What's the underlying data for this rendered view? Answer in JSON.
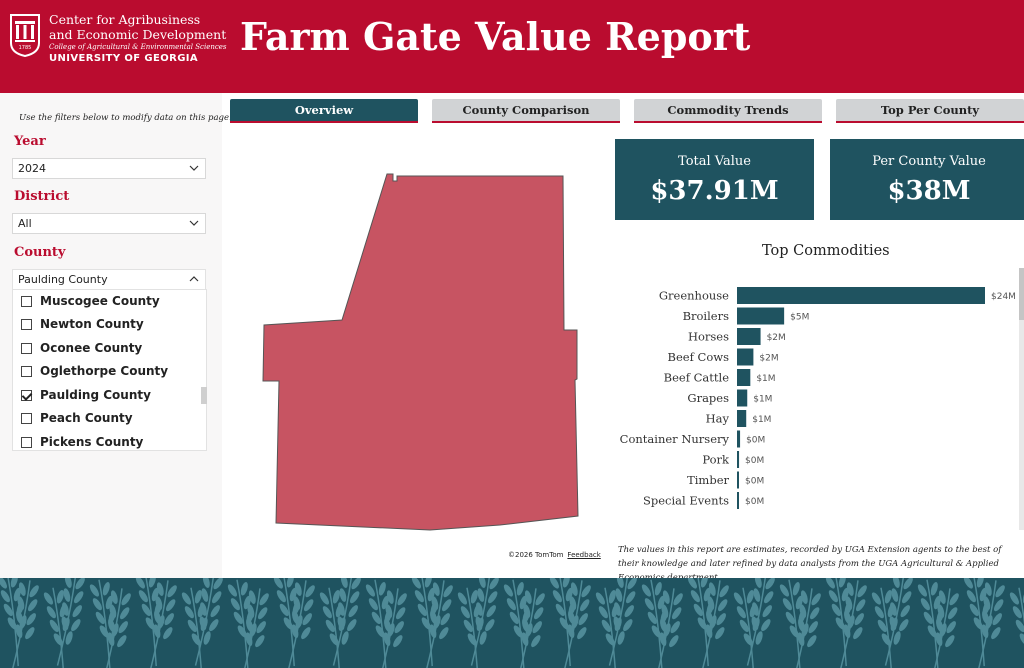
{
  "header": {
    "org_line1": "Center for Agribusiness",
    "org_line2": "and Economic Development",
    "org_line3": "College of Agricultural & Environmental Sciences",
    "org_line4": "UNIVERSITY OF GEORGIA",
    "logo_icon": "uga-arch-shield-logo",
    "logo_year": "1785",
    "title": "Farm Gate Value Report"
  },
  "filters": {
    "hint": "Use the filters below to modify data on this page.",
    "year_label": "Year",
    "year_value": "2024",
    "district_label": "District",
    "district_value": "All",
    "county_label": "County",
    "county_value": "Paulding County",
    "county_options": [
      {
        "name": "Muscogee County",
        "checked": false
      },
      {
        "name": "Newton County",
        "checked": false
      },
      {
        "name": "Oconee County",
        "checked": false
      },
      {
        "name": "Oglethorpe County",
        "checked": false
      },
      {
        "name": "Paulding County",
        "checked": true
      },
      {
        "name": "Peach County",
        "checked": false
      },
      {
        "name": "Pickens County",
        "checked": false
      }
    ]
  },
  "tabs": [
    {
      "label": "Overview",
      "active": true
    },
    {
      "label": "County Comparison",
      "active": false
    },
    {
      "label": "Commodity Trends",
      "active": false
    },
    {
      "label": "Top Per County",
      "active": false
    }
  ],
  "map": {
    "attribution": "©2026 TomTom",
    "feedback": "Feedback",
    "fill_color": "#c75462"
  },
  "cards": {
    "total_label": "Total Value",
    "total_value": "$37.91M",
    "per_county_label": "Per County Value",
    "per_county_value": "$38M"
  },
  "chart_data": {
    "type": "bar",
    "orientation": "horizontal",
    "title": "Top Commodities",
    "categories": [
      "Greenhouse",
      "Broilers",
      "Horses",
      "Beef Cows",
      "Beef Cattle",
      "Grapes",
      "Hay",
      "Container Nursery",
      "Pork",
      "Timber",
      "Special Events"
    ],
    "values": [
      24.2,
      4.6,
      2.3,
      1.6,
      1.3,
      1.0,
      0.9,
      0.3,
      0.2,
      0.1,
      0.1
    ],
    "data_labels": [
      "$24M",
      "$5M",
      "$2M",
      "$2M",
      "$1M",
      "$1M",
      "$1M",
      "$0M",
      "$0M",
      "$0M",
      "$0M"
    ],
    "xlim": [
      0,
      24.2
    ],
    "bar_color": "#1f5360"
  },
  "footnote": "The values in this report are estimates, recorded by UGA Extension agents to the best of their knowledge and later refined by data analysts from the UGA Agricultural & Applied Economics department.",
  "colors": {
    "brand_red": "#ba0c2f",
    "brand_teal": "#1f5360"
  }
}
